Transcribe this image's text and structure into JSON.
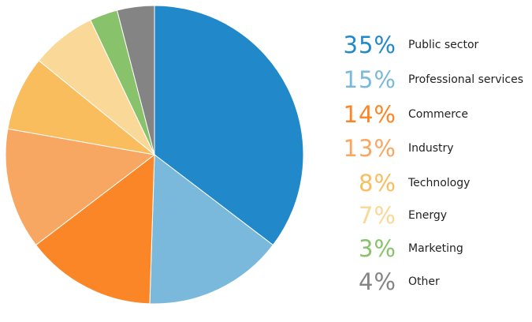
{
  "chart_data": {
    "type": "pie",
    "slices": [
      {
        "label": "Public sector",
        "value": 35,
        "display": "35%",
        "color": "#2188c9"
      },
      {
        "label": "Professional services",
        "value": 15,
        "display": "15%",
        "color": "#7ab9db"
      },
      {
        "label": "Commerce",
        "value": 14,
        "display": "14%",
        "color": "#fa8627"
      },
      {
        "label": "Industry",
        "value": 13,
        "display": "13%",
        "color": "#f8a762"
      },
      {
        "label": "Technology",
        "value": 8,
        "display": "8%",
        "color": "#f9bd5e"
      },
      {
        "label": "Energy",
        "value": 7,
        "display": "7%",
        "color": "#fad897"
      },
      {
        "label": "Marketing",
        "value": 3,
        "display": "3%",
        "color": "#88c26b"
      },
      {
        "label": "Other",
        "value": 4,
        "display": "4%",
        "color": "#848484"
      }
    ],
    "legend_position": "right"
  }
}
